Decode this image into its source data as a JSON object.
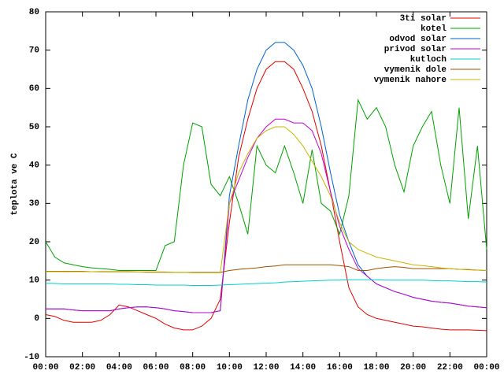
{
  "chart_data": {
    "type": "line",
    "ylabel": "teplota ve C",
    "x": [
      0,
      0.5,
      1,
      1.5,
      2,
      2.5,
      3,
      3.5,
      4,
      4.5,
      5,
      5.5,
      6,
      6.5,
      7,
      7.5,
      8,
      8.5,
      9,
      9.5,
      10,
      10.5,
      11,
      11.5,
      12,
      12.5,
      13,
      13.5,
      14,
      14.5,
      15,
      15.5,
      16,
      16.5,
      17,
      17.5,
      18,
      18.5,
      19,
      19.5,
      20,
      20.5,
      21,
      21.5,
      22,
      22.5,
      23,
      23.5,
      24
    ],
    "xlim": [
      0,
      24
    ],
    "xticks": [
      {
        "value": 0,
        "label": "00:00"
      },
      {
        "value": 2,
        "label": "02:00"
      },
      {
        "value": 4,
        "label": "04:00"
      },
      {
        "value": 6,
        "label": "06:00"
      },
      {
        "value": 8,
        "label": "08:00"
      },
      {
        "value": 10,
        "label": "10:00"
      },
      {
        "value": 12,
        "label": "12:00"
      },
      {
        "value": 14,
        "label": "14:00"
      },
      {
        "value": 16,
        "label": "16:00"
      },
      {
        "value": 18,
        "label": "18:00"
      },
      {
        "value": 20,
        "label": "20:00"
      },
      {
        "value": 22,
        "label": "22:00"
      },
      {
        "value": 24,
        "label": "00:00"
      }
    ],
    "ylim": [
      -10,
      80
    ],
    "yticks": [
      -10,
      0,
      10,
      20,
      30,
      40,
      50,
      60,
      70,
      80
    ],
    "legend": "top-right",
    "series": [
      {
        "name": "3ti solar",
        "color": "#e00000",
        "values": [
          1,
          0.5,
          -0.5,
          -1,
          -1,
          -1,
          -0.5,
          1,
          3.5,
          3,
          2,
          1,
          0,
          -1.5,
          -2.5,
          -3,
          -3,
          -2,
          0,
          5,
          25,
          42,
          52,
          60,
          65,
          67,
          67,
          65,
          60,
          54,
          45,
          33,
          20,
          8,
          3,
          1,
          0,
          -0.5,
          -1,
          -1.5,
          -2,
          -2.2,
          -2.5,
          -2.8,
          -3,
          -3,
          -3,
          -3.1,
          -3.2
        ]
      },
      {
        "name": "kotel",
        "color": "#00a000",
        "values": [
          20,
          16,
          14.5,
          14,
          13.5,
          13.2,
          13,
          12.8,
          12.5,
          12.5,
          12.5,
          12.5,
          12.5,
          19,
          20,
          40,
          51,
          50,
          35,
          32,
          37,
          30,
          22,
          45,
          40,
          38,
          45,
          38,
          30,
          44,
          30,
          28,
          22,
          32,
          57,
          52,
          55,
          50,
          40,
          33,
          45,
          50,
          54,
          40,
          30,
          55,
          26,
          45,
          18
        ]
      },
      {
        "name": "odvod solar",
        "color": "#0060d0",
        "values": [
          2.5,
          2.5,
          2.5,
          2.2,
          2,
          2,
          2,
          2,
          2.5,
          2.8,
          3,
          3,
          2.8,
          2.5,
          2,
          1.8,
          1.5,
          1.5,
          1.5,
          2,
          32,
          45,
          57,
          65,
          70,
          72,
          72,
          70,
          66,
          60,
          50,
          38,
          27,
          20,
          14,
          11,
          9,
          8,
          7,
          6.3,
          5.5,
          5,
          4.5,
          4.2,
          4,
          3.6,
          3.2,
          3,
          2.8
        ]
      },
      {
        "name": "privod solar",
        "color": "#c000d0",
        "values": [
          2.5,
          2.5,
          2.5,
          2.2,
          2,
          2,
          2,
          2,
          2.5,
          2.8,
          3,
          3,
          2.8,
          2.5,
          2,
          1.8,
          1.5,
          1.5,
          1.5,
          2,
          30,
          36,
          42,
          47,
          50,
          52,
          52,
          51,
          51,
          49,
          43,
          33,
          24,
          18,
          13,
          11,
          9,
          8,
          7,
          6.3,
          5.5,
          5,
          4.5,
          4.2,
          4,
          3.6,
          3.2,
          3,
          2.8
        ]
      },
      {
        "name": "kutloch",
        "color": "#00d0d0",
        "values": [
          9.2,
          9.1,
          9,
          9,
          9,
          9,
          9,
          9,
          8.9,
          8.9,
          8.8,
          8.8,
          8.7,
          8.7,
          8.7,
          8.7,
          8.6,
          8.6,
          8.6,
          8.7,
          8.8,
          8.9,
          9,
          9.1,
          9.2,
          9.3,
          9.5,
          9.6,
          9.7,
          9.8,
          9.9,
          10,
          10,
          10.1,
          10.1,
          10.1,
          10.1,
          10,
          10,
          10,
          10,
          10,
          9.9,
          9.8,
          9.8,
          9.7,
          9.6,
          9.6,
          9.5
        ]
      },
      {
        "name": "vymenik dole",
        "color": "#a05000",
        "values": [
          12.3,
          12.3,
          12.3,
          12.3,
          12.3,
          12.2,
          12.2,
          12.2,
          12.2,
          12.2,
          12.1,
          12.1,
          12.1,
          12.1,
          12,
          12,
          12,
          12,
          12,
          12,
          12.5,
          12.8,
          13,
          13.2,
          13.5,
          13.7,
          14,
          14,
          14,
          14,
          14,
          14,
          13.8,
          13.5,
          12.5,
          12.5,
          13,
          13.3,
          13.5,
          13.3,
          13,
          13,
          13,
          13,
          13,
          12.8,
          12.7,
          12.6,
          12.5
        ]
      },
      {
        "name": "vymenik nahore",
        "color": "#c8b400",
        "values": [
          12.2,
          12.2,
          12.2,
          12.2,
          12.2,
          12.2,
          12.1,
          12.1,
          12.1,
          12.1,
          12.1,
          12,
          12,
          12,
          12,
          12,
          11.9,
          11.9,
          11.9,
          11.9,
          30,
          38,
          43,
          47,
          49,
          50,
          50,
          48,
          45,
          41,
          37,
          32,
          25,
          20,
          18,
          17,
          16,
          15.5,
          15,
          14.5,
          14,
          13.8,
          13.5,
          13.2,
          13,
          12.8,
          12.8,
          12.6,
          12.5
        ]
      }
    ]
  }
}
